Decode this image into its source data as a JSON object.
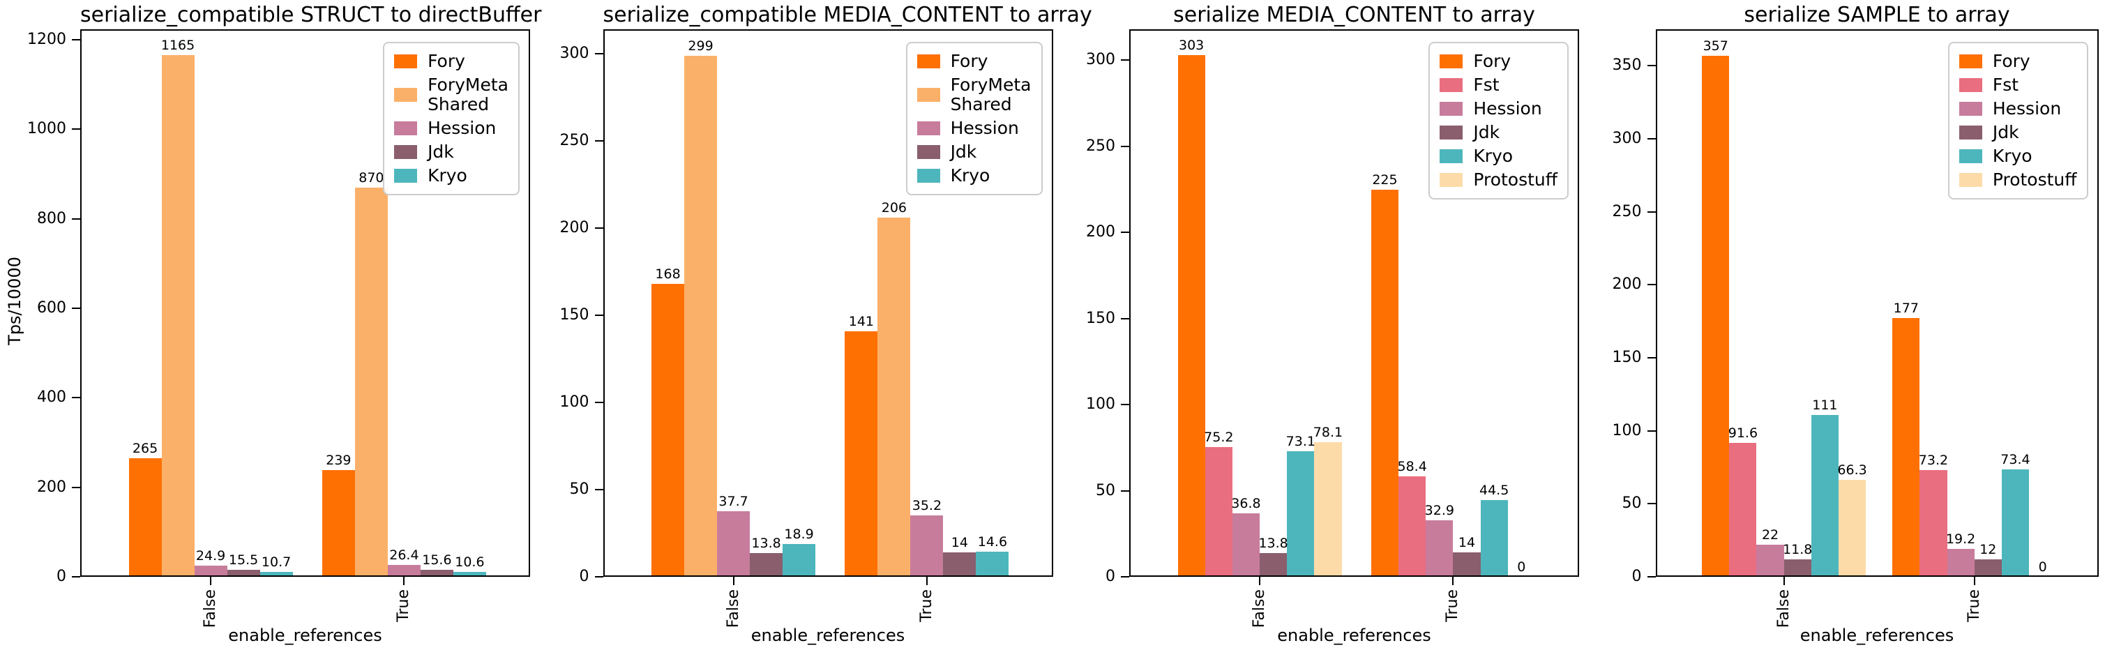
{
  "figure": {
    "background": "#ffffff",
    "text_color": "#000000",
    "xlabel": "enable_references",
    "ylabel": "Tps/10000",
    "categories": [
      "False",
      "True"
    ]
  },
  "chart_data": [
    {
      "type": "bar",
      "title": "serialize_compatible STRUCT to directBuffer",
      "xlabel": "enable_references",
      "ylabel": "Tps/10000",
      "categories": [
        "False",
        "True"
      ],
      "yticks": [
        0,
        200,
        400,
        600,
        800,
        1000,
        1200
      ],
      "ylim": [
        0,
        1223
      ],
      "grid": false,
      "legend_position": "upper right",
      "series": [
        {
          "name": "Fory",
          "color": "#FF7003",
          "values": [
            265,
            239
          ],
          "labels": [
            "265",
            "239"
          ]
        },
        {
          "name": "ForyMeta\nShared",
          "color": "#FBB069",
          "values": [
            1165,
            870
          ],
          "labels": [
            "1165",
            "870"
          ]
        },
        {
          "name": "Hession",
          "color": "#C77C9C",
          "values": [
            24.9,
            26.4
          ],
          "labels": [
            "24.9",
            "26.4"
          ]
        },
        {
          "name": "Jdk",
          "color": "#8A5E6D",
          "values": [
            15.5,
            15.6
          ],
          "labels": [
            "15.5",
            "15.6"
          ]
        },
        {
          "name": "Kryo",
          "color": "#4DB6BC",
          "values": [
            10.7,
            10.6
          ],
          "labels": [
            "10.7",
            "10.6"
          ]
        }
      ]
    },
    {
      "type": "bar",
      "title": "serialize_compatible MEDIA_CONTENT to array",
      "xlabel": "enable_references",
      "categories": [
        "False",
        "True"
      ],
      "yticks": [
        0,
        50,
        100,
        150,
        200,
        250,
        300
      ],
      "ylim": [
        0,
        314
      ],
      "grid": false,
      "legend_position": "upper right",
      "series": [
        {
          "name": "Fory",
          "color": "#FF7003",
          "values": [
            168,
            141
          ],
          "labels": [
            "168",
            "141"
          ]
        },
        {
          "name": "ForyMeta\nShared",
          "color": "#FBB069",
          "values": [
            299,
            206
          ],
          "labels": [
            "299",
            "206"
          ]
        },
        {
          "name": "Hession",
          "color": "#C77C9C",
          "values": [
            37.7,
            35.2
          ],
          "labels": [
            "37.7",
            "35.2"
          ]
        },
        {
          "name": "Jdk",
          "color": "#8A5E6D",
          "values": [
            13.8,
            14
          ],
          "labels": [
            "13.8",
            "14"
          ]
        },
        {
          "name": "Kryo",
          "color": "#4DB6BC",
          "values": [
            18.9,
            14.6
          ],
          "labels": [
            "18.9",
            "14.6"
          ]
        }
      ]
    },
    {
      "type": "bar",
      "title": "serialize MEDIA_CONTENT to array",
      "xlabel": "enable_references",
      "categories": [
        "False",
        "True"
      ],
      "yticks": [
        0,
        50,
        100,
        150,
        200,
        250,
        300
      ],
      "ylim": [
        0,
        318
      ],
      "grid": false,
      "legend_position": "upper right",
      "series": [
        {
          "name": "Fory",
          "color": "#FF7003",
          "values": [
            303,
            225
          ],
          "labels": [
            "303",
            "225"
          ]
        },
        {
          "name": "Fst",
          "color": "#E96E80",
          "values": [
            75.2,
            58.4
          ],
          "labels": [
            "75.2",
            "58.4"
          ]
        },
        {
          "name": "Hession",
          "color": "#C77C9C",
          "values": [
            36.8,
            32.9
          ],
          "labels": [
            "36.8",
            "32.9"
          ]
        },
        {
          "name": "Jdk",
          "color": "#8A5E6D",
          "values": [
            13.8,
            14
          ],
          "labels": [
            "13.8",
            "14"
          ]
        },
        {
          "name": "Kryo",
          "color": "#4DB6BC",
          "values": [
            73.1,
            44.5
          ],
          "labels": [
            "73.1",
            "44.5"
          ]
        },
        {
          "name": "Protostuff",
          "color": "#FDDBA9",
          "values": [
            78.1,
            0
          ],
          "labels": [
            "78.1",
            "0"
          ]
        }
      ]
    },
    {
      "type": "bar",
      "title": "serialize SAMPLE to array",
      "xlabel": "enable_references",
      "categories": [
        "False",
        "True"
      ],
      "yticks": [
        0,
        50,
        100,
        150,
        200,
        250,
        300,
        350
      ],
      "ylim": [
        0,
        375
      ],
      "grid": false,
      "legend_position": "upper right",
      "series": [
        {
          "name": "Fory",
          "color": "#FF7003",
          "values": [
            357,
            177
          ],
          "labels": [
            "357",
            "177"
          ]
        },
        {
          "name": "Fst",
          "color": "#E96E80",
          "values": [
            91.6,
            73.2
          ],
          "labels": [
            "91.6",
            "73.2"
          ]
        },
        {
          "name": "Hession",
          "color": "#C77C9C",
          "values": [
            22,
            19.2
          ],
          "labels": [
            "22",
            "19.2"
          ]
        },
        {
          "name": "Jdk",
          "color": "#8A5E6D",
          "values": [
            11.8,
            12
          ],
          "labels": [
            "11.8",
            "12"
          ]
        },
        {
          "name": "Kryo",
          "color": "#4DB6BC",
          "values": [
            111,
            73.4
          ],
          "labels": [
            "111",
            "73.4"
          ]
        },
        {
          "name": "Protostuff",
          "color": "#FDDBA9",
          "values": [
            66.3,
            0
          ],
          "labels": [
            "66.3",
            "0"
          ]
        }
      ]
    }
  ]
}
